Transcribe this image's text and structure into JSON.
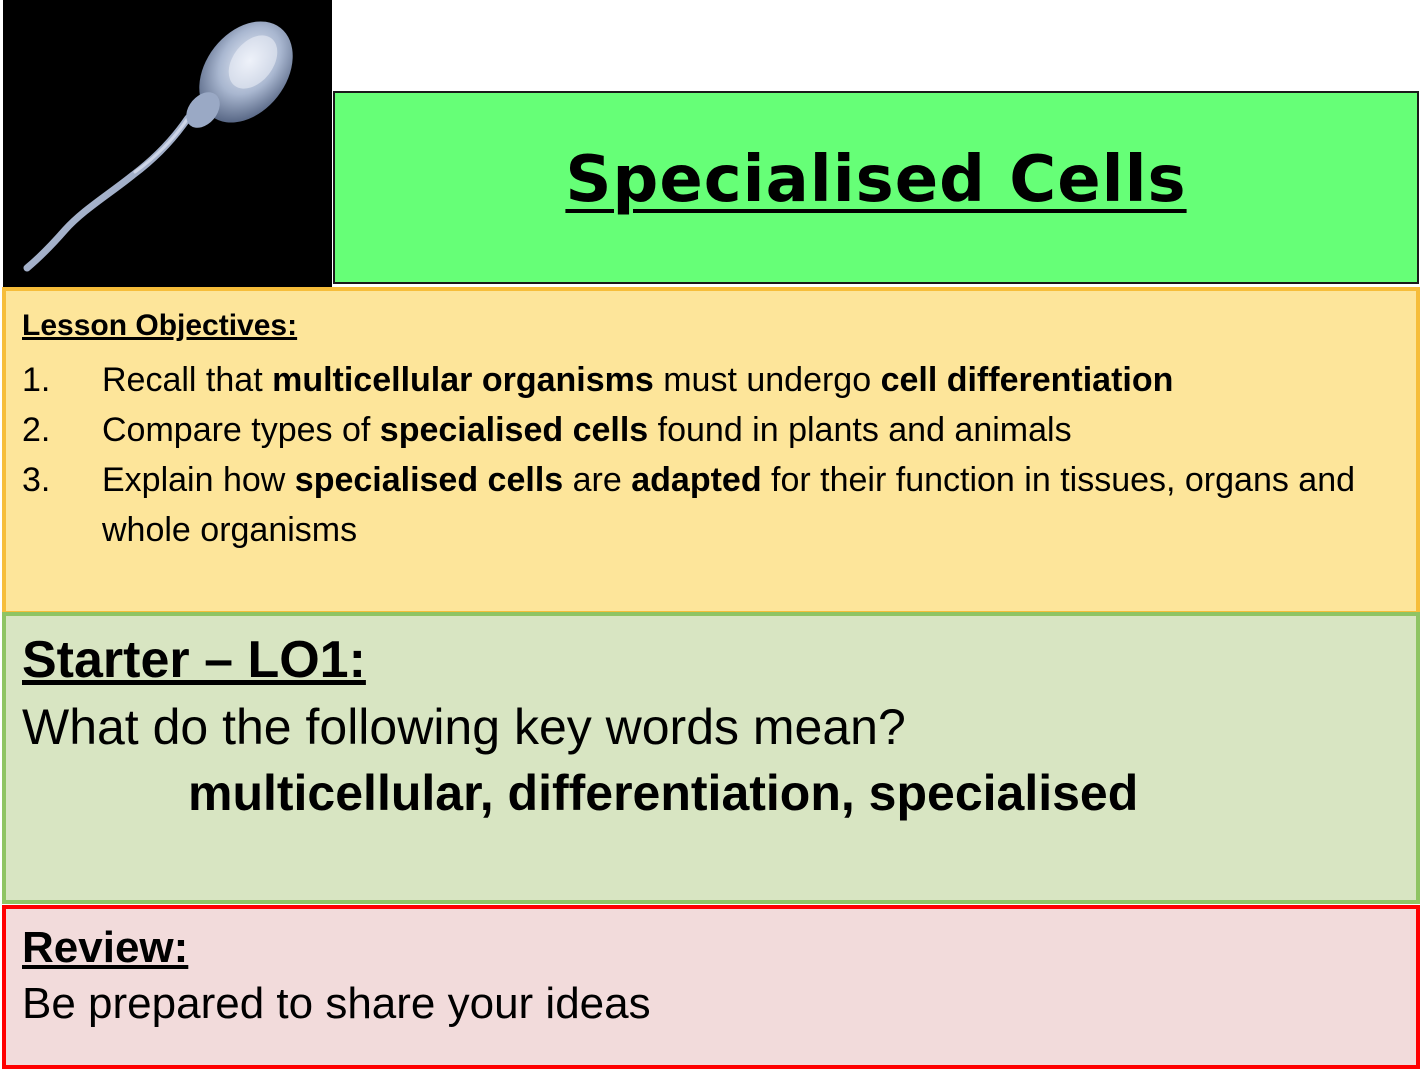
{
  "header": {
    "image_subject": "sperm-cell",
    "title": "Specialised Cells"
  },
  "objectives": {
    "heading": "Lesson Objectives:",
    "items": [
      {
        "number": "1.",
        "parts": [
          {
            "text": "Recall that ",
            "bold": false
          },
          {
            "text": "multicellular organisms",
            "bold": true
          },
          {
            "text": " must undergo ",
            "bold": false
          },
          {
            "text": "cell differentiation",
            "bold": true
          }
        ]
      },
      {
        "number": "2.",
        "parts": [
          {
            "text": "Compare types of ",
            "bold": false
          },
          {
            "text": "specialised cells",
            "bold": true
          },
          {
            "text": " found in plants and animals",
            "bold": false
          }
        ]
      },
      {
        "number": "3.",
        "parts": [
          {
            "text": "Explain how ",
            "bold": false
          },
          {
            "text": "specialised cells",
            "bold": true
          },
          {
            "text": " are ",
            "bold": false
          },
          {
            "text": "adapted",
            "bold": true
          },
          {
            "text": " for their function in tissues, organs and whole organisms",
            "bold": false
          }
        ]
      }
    ]
  },
  "starter": {
    "heading": "Starter – LO1:",
    "question": "What do the following key words mean?",
    "keywords": "multicellular, differentiation, specialised"
  },
  "review": {
    "heading": "Review:",
    "text": "Be prepared to share your ideas"
  },
  "colors": {
    "title_bg": "#66ff77",
    "objectives_bg": "#fde59a",
    "objectives_border": "#f6bd3a",
    "starter_bg": "#d8e5c2",
    "starter_border": "#8fc463",
    "review_bg": "#f2dbdb",
    "review_border": "#ff0000"
  }
}
